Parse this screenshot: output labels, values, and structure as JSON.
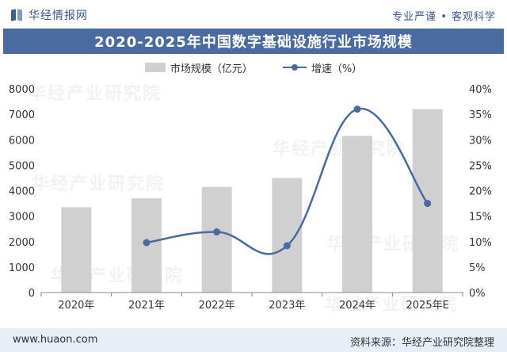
{
  "header": {
    "brand": "华经情报网",
    "slogan": "专业严谨 • 客观科学",
    "title": "2020-2025年中国数字基础设施行业市场规模"
  },
  "footer": {
    "url": "www.huaon.com",
    "source": "资料来源：华经产业研究院整理"
  },
  "watermark": "华经产业研究院",
  "colors": {
    "bar": "#d0d0d0",
    "line": "#4a6b9f",
    "title_bg": "#4a6b9f",
    "footer_bg": "#e8eef7"
  },
  "chart_data": {
    "type": "bar",
    "categories": [
      "2020年",
      "2021年",
      "2022年",
      "2023年",
      "2024年",
      "2025年E"
    ],
    "series": [
      {
        "name": "市场规模（亿元）",
        "type": "bar",
        "axis": "left",
        "values": [
          3350,
          3700,
          4150,
          4500,
          6150,
          7200
        ]
      },
      {
        "name": "增速（%）",
        "type": "line",
        "axis": "right",
        "values": [
          null,
          9.8,
          11.9,
          9.2,
          36.0,
          17.5
        ]
      }
    ],
    "y_left": {
      "min": 0,
      "max": 8000,
      "ticks": [
        "0",
        "1000",
        "2000",
        "3000",
        "4000",
        "5000",
        "6000",
        "7000",
        "8000"
      ]
    },
    "y_right": {
      "min": 0,
      "max": 40,
      "ticks": [
        "0%",
        "5%",
        "10%",
        "15%",
        "20%",
        "25%",
        "30%",
        "35%",
        "40%"
      ]
    },
    "title": "2020-2025年中国数字基础设施行业市场规模",
    "legend_position": "top-center",
    "grid": false
  }
}
